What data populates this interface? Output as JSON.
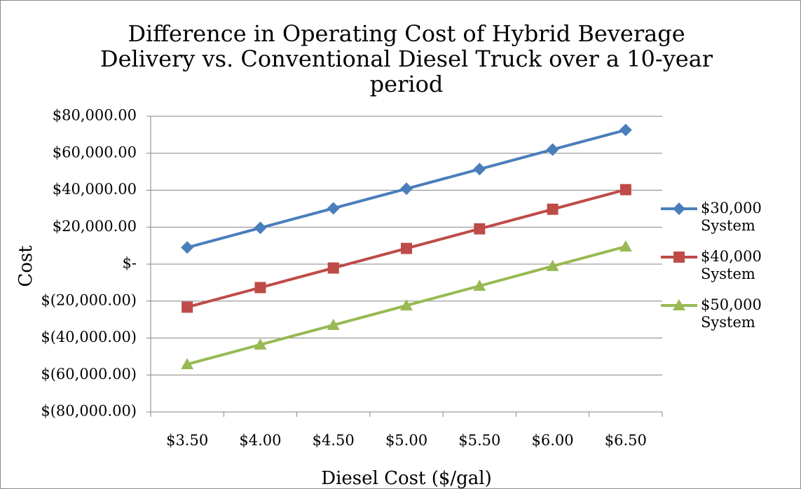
{
  "chart_data": {
    "type": "line",
    "title": "Difference in Operating Cost of Hybrid Beverage Delivery vs. Conventional Diesel Truck over a 10-year period",
    "x_label": "Diesel Cost ($/gal)",
    "y_label": "Cost",
    "categories": [
      "$3.50",
      "$4.00",
      "$4.50",
      "$5.00",
      "$5.50",
      "$6.00",
      "$6.50"
    ],
    "series": [
      {
        "name": "$30,000 System",
        "color": "#4a7ebb",
        "marker": "diamond",
        "values": [
          9000,
          19600,
          30200,
          40800,
          51400,
          62000,
          72600
        ]
      },
      {
        "name": "$40,000 System",
        "color": "#be4b48",
        "marker": "square",
        "values": [
          -23300,
          -12700,
          -2100,
          8500,
          19100,
          29700,
          40300
        ]
      },
      {
        "name": "$50,000 System",
        "color": "#98b954",
        "marker": "triangle",
        "values": [
          -54200,
          -43600,
          -33000,
          -22400,
          -11800,
          -1100,
          9500
        ]
      }
    ],
    "ylim": [
      -80000,
      80000
    ],
    "yticks": [
      {
        "value": 80000,
        "label": "$80,000.00"
      },
      {
        "value": 60000,
        "label": "$60,000.00"
      },
      {
        "value": 40000,
        "label": "$40,000.00"
      },
      {
        "value": 20000,
        "label": "$20,000.00"
      },
      {
        "value": 0,
        "label": "$-"
      },
      {
        "value": -20000,
        "label": "$(20,000.00)"
      },
      {
        "value": -40000,
        "label": "$(40,000.00)"
      },
      {
        "value": -60000,
        "label": "$(60,000.00)"
      },
      {
        "value": -80000,
        "label": "$(80,000.00)"
      }
    ],
    "grid": true,
    "legend": "right"
  }
}
